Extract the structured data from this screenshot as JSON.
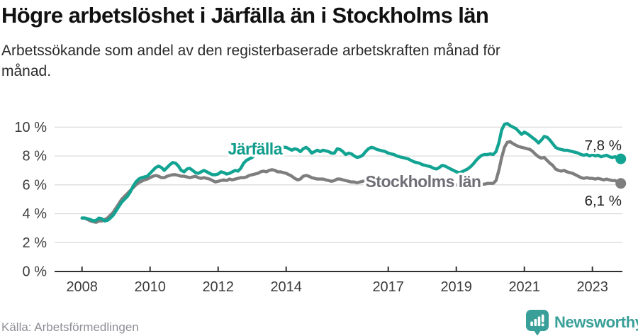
{
  "header": {
    "title": "Högre arbetslöshet i Järfälla än i Stockholms län",
    "subtitle_lines": [
      "Arbetssökande som andel av den registerbaserade arbetskraften månad för",
      "månad."
    ]
  },
  "footer": {
    "source": "Källa: Arbetsförmedlingen",
    "brand": "Newsworthy"
  },
  "colors": {
    "grid": "#d8d8d8",
    "axis": "#303030",
    "axis_text": "#3c3c3c",
    "value_label": "#202020",
    "logo_teal": "#38a098",
    "halo": "#ffffff"
  },
  "chart_data": {
    "type": "line",
    "title": "Högre arbetslöshet i Järfälla än i Stockholms län",
    "subtitle": "Arbetssökande som andel av den registerbaserade arbetskraften månad för månad.",
    "xlabel": "",
    "ylabel": "",
    "grid": "horizontal",
    "legend_position": "inline-labels",
    "x_unit": "month",
    "x_start": "2008-01",
    "x_end": "2023-11",
    "ylim": [
      0,
      10.8
    ],
    "x_ticks": [
      2008,
      2010,
      2012,
      2014,
      2017,
      2019,
      2021,
      2023
    ],
    "y_ticks": [
      {
        "value": 0,
        "label": "0 %"
      },
      {
        "value": 2,
        "label": "2 %"
      },
      {
        "value": 4,
        "label": "4 %"
      },
      {
        "value": 6,
        "label": "6 %"
      },
      {
        "value": 8,
        "label": "8 %"
      },
      {
        "value": 10,
        "label": "10 %"
      }
    ],
    "series": [
      {
        "name": "Järfälla",
        "slug": "jarfalla",
        "color": "#12a392",
        "label_color": "#0f9c8c",
        "end_label": "7,8 %",
        "last_value": 7.8,
        "values": [
          3.7,
          3.7,
          3.65,
          3.6,
          3.5,
          3.55,
          3.7,
          3.65,
          3.5,
          3.55,
          3.7,
          3.9,
          4.2,
          4.5,
          4.8,
          5.0,
          5.2,
          5.5,
          5.9,
          6.2,
          6.4,
          6.5,
          6.55,
          6.6,
          6.8,
          7.0,
          7.2,
          7.3,
          7.2,
          7.0,
          7.2,
          7.4,
          7.55,
          7.5,
          7.3,
          7.0,
          6.9,
          7.1,
          7.15,
          7.0,
          6.85,
          6.8,
          6.9,
          7.0,
          6.9,
          6.8,
          6.7,
          6.7,
          6.75,
          6.9,
          6.85,
          6.75,
          6.8,
          6.9,
          7.0,
          6.95,
          7.15,
          7.5,
          7.7,
          7.8,
          7.9,
          8.1,
          8.2,
          8.35,
          8.45,
          8.3,
          8.5,
          8.65,
          8.7,
          8.55,
          8.65,
          8.6,
          8.6,
          8.5,
          8.4,
          8.5,
          8.45,
          8.3,
          8.5,
          8.6,
          8.45,
          8.2,
          8.3,
          8.4,
          8.3,
          8.4,
          8.35,
          8.3,
          8.2,
          8.2,
          8.5,
          8.45,
          8.3,
          8.1,
          8.2,
          8.15,
          8.0,
          7.9,
          7.95,
          8.05,
          8.3,
          8.5,
          8.6,
          8.55,
          8.45,
          8.4,
          8.35,
          8.3,
          8.2,
          8.15,
          8.1,
          8.0,
          7.95,
          7.9,
          7.85,
          7.8,
          7.7,
          7.6,
          7.55,
          7.5,
          7.4,
          7.35,
          7.3,
          7.25,
          7.15,
          7.1,
          7.2,
          7.35,
          7.3,
          7.2,
          7.1,
          7.0,
          6.9,
          6.85,
          6.9,
          7.0,
          7.1,
          7.25,
          7.45,
          7.7,
          7.9,
          8.05,
          8.1,
          8.1,
          8.15,
          8.1,
          8.3,
          8.9,
          9.8,
          10.2,
          10.25,
          10.1,
          10.0,
          9.9,
          9.7,
          9.5,
          9.65,
          9.55,
          9.4,
          9.25,
          9.1,
          8.9,
          9.1,
          9.35,
          9.3,
          9.1,
          8.85,
          8.6,
          8.5,
          8.45,
          8.4,
          8.4,
          8.35,
          8.3,
          8.25,
          8.2,
          8.1,
          8.05,
          8.1,
          8.0,
          8.1,
          8.0,
          8.05,
          7.95,
          8.0,
          8.05,
          7.95,
          7.9,
          7.95,
          7.85,
          7.8
        ]
      },
      {
        "name": "Stockholms län",
        "slug": "stockholms-lan",
        "color": "#7e7e7e",
        "label_color": "#6e6e76",
        "end_label": "6,1 %",
        "last_value": 6.1,
        "values": [
          3.7,
          3.7,
          3.6,
          3.5,
          3.45,
          3.4,
          3.5,
          3.5,
          3.6,
          3.7,
          3.9,
          4.1,
          4.4,
          4.7,
          5.0,
          5.2,
          5.4,
          5.6,
          5.8,
          6.0,
          6.15,
          6.25,
          6.35,
          6.4,
          6.5,
          6.6,
          6.65,
          6.6,
          6.5,
          6.5,
          6.6,
          6.65,
          6.7,
          6.7,
          6.65,
          6.6,
          6.6,
          6.55,
          6.5,
          6.55,
          6.6,
          6.5,
          6.45,
          6.5,
          6.45,
          6.4,
          6.3,
          6.2,
          6.25,
          6.3,
          6.35,
          6.3,
          6.4,
          6.35,
          6.4,
          6.45,
          6.5,
          6.5,
          6.55,
          6.65,
          6.7,
          6.75,
          6.8,
          6.9,
          6.95,
          6.9,
          7.0,
          7.05,
          7.0,
          6.9,
          6.9,
          6.85,
          6.8,
          6.7,
          6.6,
          6.45,
          6.35,
          6.4,
          6.6,
          6.65,
          6.6,
          6.5,
          6.45,
          6.4,
          6.4,
          6.4,
          6.35,
          6.3,
          6.25,
          6.3,
          6.4,
          6.4,
          6.35,
          6.3,
          6.25,
          6.2,
          6.2,
          6.15,
          6.2,
          6.25,
          6.3,
          6.3,
          6.3,
          6.25,
          6.2,
          6.2,
          6.15,
          6.1,
          6.1,
          6.05,
          6.0,
          6.0,
          6.0,
          6.0,
          6.05,
          6.1,
          6.05,
          6.0,
          6.0,
          6.0,
          6.0,
          5.95,
          5.95,
          5.95,
          5.9,
          5.9,
          5.95,
          6.0,
          6.0,
          5.95,
          5.95,
          6.0,
          6.0,
          6.0,
          6.0,
          6.05,
          6.05,
          6.1,
          6.1,
          6.1,
          6.1,
          6.05,
          6.05,
          6.1,
          6.1,
          6.1,
          6.3,
          7.0,
          7.9,
          8.6,
          8.95,
          9.0,
          8.85,
          8.75,
          8.65,
          8.6,
          8.55,
          8.5,
          8.45,
          8.3,
          8.1,
          7.95,
          7.85,
          7.9,
          7.7,
          7.5,
          7.35,
          7.1,
          7.0,
          6.95,
          7.0,
          6.9,
          6.85,
          6.8,
          6.7,
          6.6,
          6.5,
          6.45,
          6.5,
          6.45,
          6.45,
          6.4,
          6.45,
          6.4,
          6.35,
          6.4,
          6.35,
          6.3,
          6.3,
          6.2,
          6.1
        ]
      }
    ]
  }
}
